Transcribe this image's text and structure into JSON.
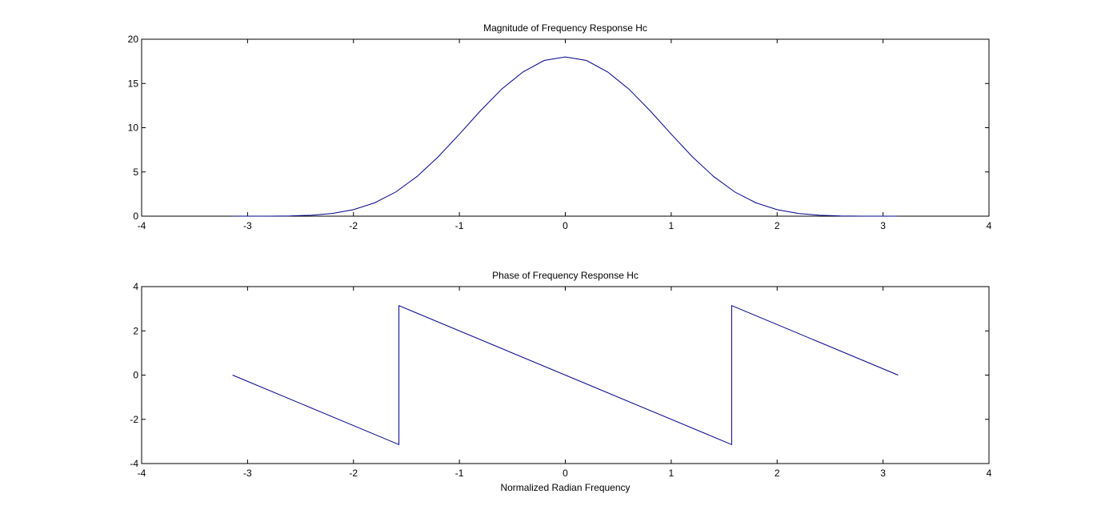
{
  "chart_data": [
    {
      "type": "line",
      "title": "Magnitude of Frequency Response Hc",
      "xlabel": "",
      "ylabel": "",
      "xlim": [
        -4,
        4
      ],
      "ylim": [
        0,
        20
      ],
      "xticks": [
        -4,
        -3,
        -2,
        -1,
        0,
        1,
        2,
        3,
        4
      ],
      "yticks": [
        0,
        5,
        10,
        15,
        20
      ],
      "grid": false,
      "color": "#00008B",
      "series": [
        {
          "x": [
            -3.1416,
            -3.0,
            -2.8,
            -2.6,
            -2.4,
            -2.2,
            -2.0,
            -1.8,
            -1.6,
            -1.4,
            -1.2,
            -1.0,
            -0.8,
            -0.6,
            -0.4,
            -0.2,
            0.0,
            0.2,
            0.4,
            0.6,
            0.8,
            1.0,
            1.2,
            1.4,
            1.6,
            1.8,
            2.0,
            2.2,
            2.4,
            2.6,
            2.8,
            3.0,
            3.1416
          ],
          "y": [
            0.0,
            0.0002,
            0.004,
            0.028,
            0.107,
            0.308,
            0.735,
            1.506,
            2.737,
            4.484,
            6.709,
            9.27,
            11.92,
            14.37,
            16.3,
            17.6,
            18.0,
            17.6,
            16.3,
            14.37,
            11.92,
            9.27,
            6.709,
            4.484,
            2.737,
            1.506,
            0.735,
            0.308,
            0.107,
            0.028,
            0.004,
            0.0002,
            0.0
          ]
        }
      ]
    },
    {
      "type": "line",
      "title": "Phase of Frequency Response Hc",
      "xlabel": "Normalized Radian Frequency",
      "ylabel": "",
      "xlim": [
        -4,
        4
      ],
      "ylim": [
        -4,
        4
      ],
      "xticks": [
        -4,
        -3,
        -2,
        -1,
        0,
        1,
        2,
        3,
        4
      ],
      "yticks": [
        -4,
        -2,
        0,
        2,
        4
      ],
      "grid": false,
      "color": "#00008B",
      "series": [
        {
          "x": [
            -3.1416,
            -1.5708,
            -1.5708,
            1.5708,
            1.5708,
            3.1416
          ],
          "y": [
            0.0,
            -3.1416,
            3.1416,
            -3.1416,
            3.1416,
            0.0
          ]
        }
      ]
    }
  ]
}
